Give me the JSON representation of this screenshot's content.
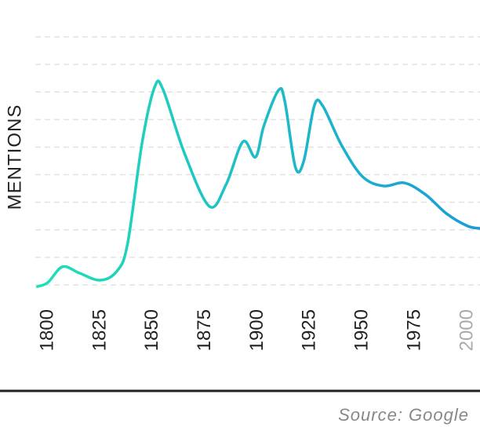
{
  "chart_data": {
    "type": "line",
    "y_label": "MENTIONS",
    "source": "Source: Google",
    "x": [
      1795,
      1800,
      1807,
      1815,
      1825,
      1833,
      1838,
      1845,
      1851,
      1855,
      1865,
      1877,
      1885,
      1893,
      1899,
      1903,
      1910,
      1913,
      1918,
      1922,
      1927,
      1931,
      1940,
      1950,
      1960,
      1970,
      1980,
      1990,
      2000,
      2006
    ],
    "series": [
      {
        "colors": [
          "#1fe0b6",
          "#1a9bd8"
        ],
        "values": [
          -0.06,
          0.09,
          0.66,
          0.43,
          0.17,
          0.51,
          1.5,
          5.2,
          7.2,
          7.07,
          4.8,
          2.85,
          3.65,
          5.2,
          4.64,
          5.78,
          7.07,
          6.64,
          4.27,
          4.5,
          6.5,
          6.5,
          5.07,
          3.93,
          3.59,
          3.7,
          3.28,
          2.59,
          2.14,
          2.05
        ]
      }
    ],
    "xlim": [
      1794,
      2006
    ],
    "xticks": [
      1800,
      1825,
      1850,
      1875,
      1900,
      1925,
      1950,
      1975,
      2000
    ],
    "xtick_colors": [
      "#222",
      "#222",
      "#222",
      "#222",
      "#222",
      "#222",
      "#222",
      "#222",
      "#aaa"
    ],
    "ylim": [
      0,
      9
    ],
    "yticks": [
      0,
      1,
      2,
      3,
      4,
      5,
      6,
      7,
      8,
      9
    ],
    "show_ytick_labels": false,
    "grid": true
  }
}
